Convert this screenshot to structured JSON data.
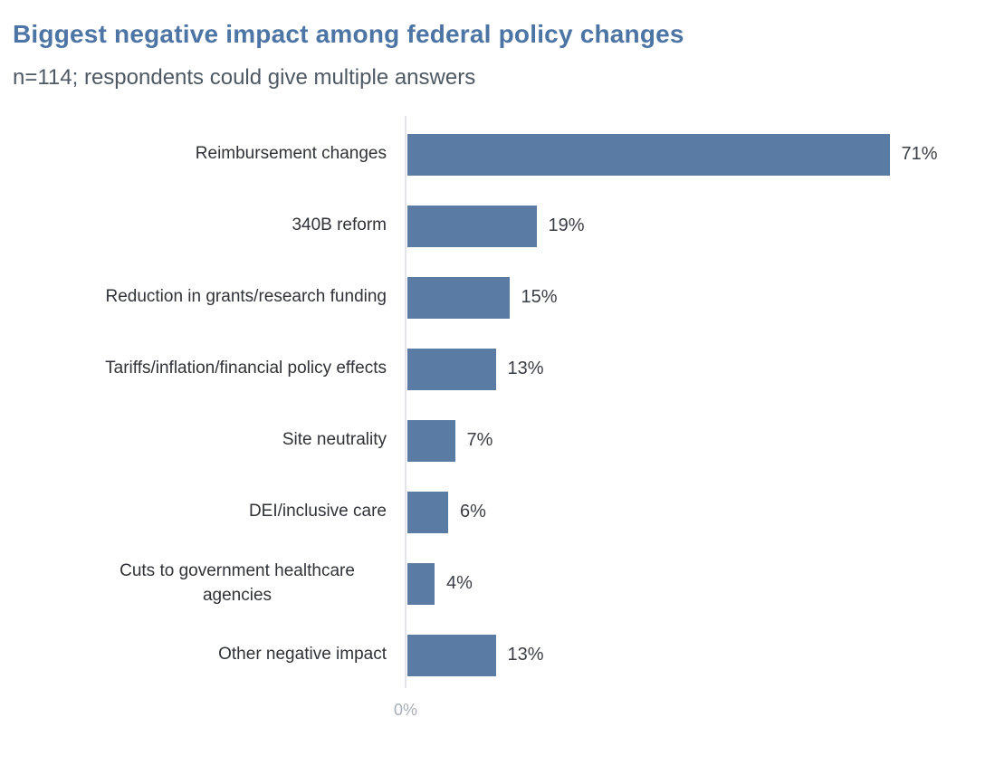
{
  "header": {
    "title": "Biggest negative impact among federal policy changes",
    "subtitle": "n=114; respondents could give multiple answers"
  },
  "chart_data": {
    "type": "bar",
    "orientation": "horizontal",
    "title": "Biggest negative impact among federal policy changes",
    "subtitle": "n=114; respondents could give multiple answers",
    "categories": [
      "Reimbursement changes",
      "340B reform",
      "Reduction in grants/research funding",
      "Tariffs/inflation/financial policy effects",
      "Site neutrality",
      "DEI/inclusive care",
      "Cuts to government healthcare agencies",
      "Other negative impact"
    ],
    "values": [
      71,
      19,
      15,
      13,
      7,
      6,
      4,
      13
    ],
    "value_labels": [
      "71%",
      "19%",
      "15%",
      "13%",
      "7%",
      "6%",
      "4%",
      "13%"
    ],
    "xlabel": "",
    "ylabel": "",
    "xlim": [
      0,
      85
    ],
    "x_axis": {
      "ticks": [
        "0%"
      ]
    },
    "grid": false,
    "legend": false,
    "data_labels_position": "outside-end",
    "colors": {
      "bar": "#5A7BA4",
      "title": "#4C74A4",
      "subtitle": "#4E5964",
      "category_label": "#2F3338",
      "value_label": "#3A3F46",
      "axis_line": "#E2E6EA",
      "tick_label": "#A7AFB8",
      "background": "#FFFFFF"
    }
  }
}
